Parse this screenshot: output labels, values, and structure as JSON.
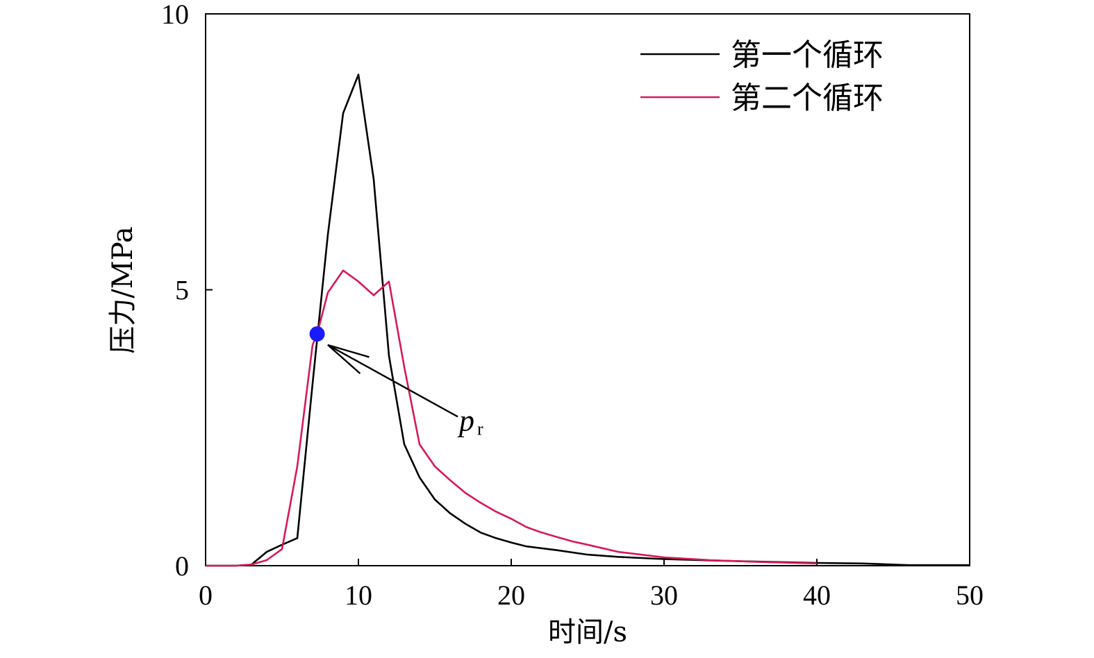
{
  "chart_data": {
    "type": "line",
    "xlabel": "时间/s",
    "ylabel": "压力/MPa",
    "xlim": [
      0,
      50
    ],
    "ylim": [
      0,
      10
    ],
    "xticks": [
      "0",
      "10",
      "20",
      "30",
      "40",
      "50"
    ],
    "yticks": [
      "0",
      "5",
      "10"
    ],
    "grid": false,
    "legend_position": "top-right",
    "series": [
      {
        "name": "第一个循环",
        "color": "#000000",
        "x": [
          0,
          2,
          3,
          4,
          5,
          6,
          7,
          8,
          9,
          10,
          11,
          12,
          13,
          14,
          15,
          16,
          17,
          18,
          19,
          20,
          21,
          23,
          25,
          27,
          30,
          35,
          40,
          43,
          46,
          50
        ],
        "y": [
          0,
          0,
          0.02,
          0.25,
          0.38,
          0.5,
          3.3,
          6.0,
          8.2,
          8.9,
          7.0,
          3.8,
          2.2,
          1.6,
          1.2,
          0.95,
          0.76,
          0.6,
          0.5,
          0.42,
          0.35,
          0.28,
          0.2,
          0.16,
          0.12,
          0.08,
          0.05,
          0.04,
          0.01,
          0.01
        ]
      },
      {
        "name": "第二个循环",
        "color": "#d6185a",
        "x": [
          0,
          2,
          3,
          4,
          5,
          6,
          7,
          7.3,
          8,
          9,
          10,
          11,
          12,
          13,
          14,
          15,
          16,
          17,
          18,
          19,
          20,
          21,
          22,
          23,
          24,
          25,
          27,
          30,
          33,
          36,
          40
        ],
        "y": [
          0,
          0,
          0.02,
          0.1,
          0.3,
          1.8,
          4.0,
          4.2,
          4.95,
          5.35,
          5.15,
          4.9,
          5.15,
          3.6,
          2.2,
          1.8,
          1.55,
          1.32,
          1.14,
          0.98,
          0.85,
          0.7,
          0.6,
          0.52,
          0.44,
          0.38,
          0.25,
          0.15,
          0.1,
          0.07,
          0.04
        ]
      }
    ],
    "annotation": {
      "label": "p",
      "subscript": "r",
      "point": {
        "x": 7.3,
        "y": 4.2
      },
      "marker_color": "#1a1aff",
      "arrow_tail": {
        "x": 16.5,
        "y": 2.7
      },
      "arrow_head": {
        "x": 8.0,
        "y": 4.0
      }
    }
  }
}
